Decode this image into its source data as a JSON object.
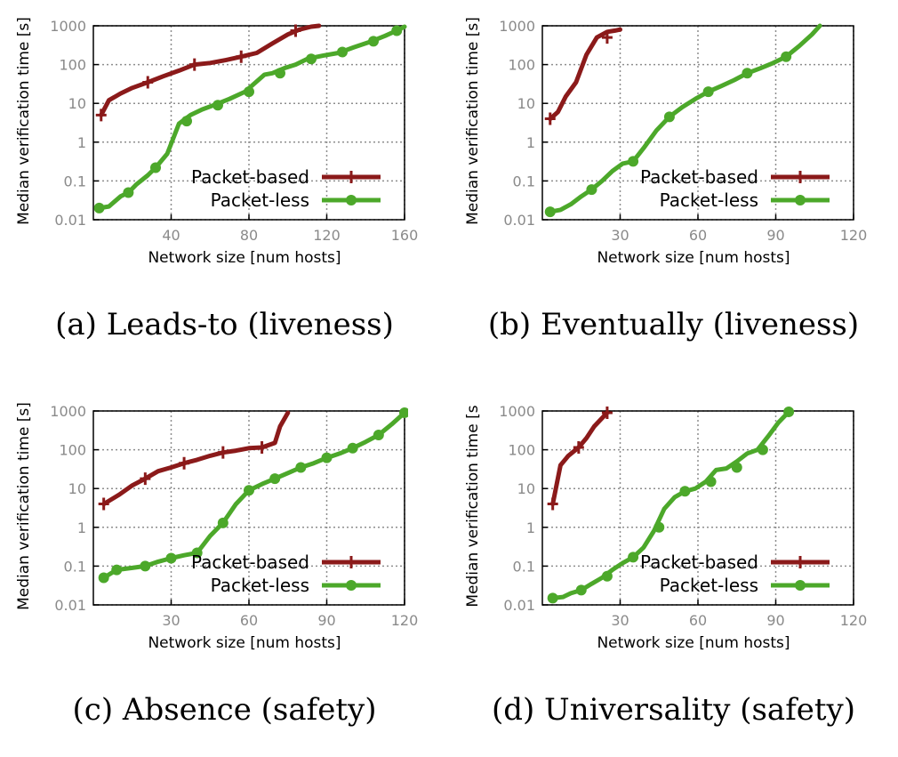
{
  "chart_data": [
    {
      "type": "line",
      "caption": "(a) Leads-to (liveness)",
      "xlabel": "Network size [num hosts]",
      "ylabel": "Median verification time [s]",
      "xlim": [
        0,
        160
      ],
      "xticks": [
        40,
        80,
        120,
        160
      ],
      "ylim": [
        0.01,
        1000
      ],
      "yscale": "log",
      "yticks": [
        0.01,
        0.1,
        1,
        10,
        100,
        1000
      ],
      "ytick_labels": [
        "0.01",
        "0.1",
        "1",
        "10",
        "100",
        "1000"
      ],
      "grid": true,
      "legend_position": "right",
      "series": [
        {
          "name": "Packet-based",
          "color": "#8b1a1a",
          "marker": "plus",
          "x": [
            4,
            8,
            14,
            20,
            28,
            36,
            44,
            52,
            60,
            68,
            76,
            84,
            92,
            100,
            106,
            112,
            116
          ],
          "y": [
            5,
            12,
            18,
            25,
            35,
            50,
            70,
            100,
            110,
            130,
            160,
            200,
            350,
            600,
            800,
            950,
            1000
          ],
          "marker_x": [
            4,
            28,
            52,
            76,
            104
          ],
          "marker_y": [
            5,
            35,
            100,
            160,
            750
          ]
        },
        {
          "name": "Packet-less",
          "color": "#4ca82a",
          "marker": "circle",
          "x": [
            3,
            8,
            14,
            18,
            22,
            28,
            32,
            38,
            44,
            50,
            56,
            62,
            70,
            78,
            82,
            88,
            92,
            98,
            104,
            110,
            118,
            126,
            134,
            142,
            150,
            156,
            160
          ],
          "y": [
            0.02,
            0.022,
            0.04,
            0.05,
            0.08,
            0.14,
            0.22,
            0.5,
            3,
            5,
            7,
            9,
            13,
            20,
            30,
            55,
            60,
            80,
            100,
            140,
            170,
            200,
            280,
            380,
            550,
            750,
            950
          ],
          "marker_x": [
            3,
            18,
            32,
            48,
            64,
            80,
            96,
            112,
            128,
            144,
            156
          ],
          "marker_y": [
            0.02,
            0.05,
            0.22,
            3.5,
            9,
            20,
            60,
            140,
            210,
            400,
            750
          ]
        }
      ]
    },
    {
      "type": "line",
      "caption": "(b) Eventually (liveness)",
      "xlabel": "Network size [num hosts]",
      "ylabel": "Median verification time [s]",
      "xlim": [
        0,
        120
      ],
      "xticks": [
        30,
        60,
        90,
        120
      ],
      "ylim": [
        0.01,
        1000
      ],
      "yscale": "log",
      "yticks": [
        0.01,
        0.1,
        1,
        10,
        100,
        1000
      ],
      "ytick_labels": [
        "0.01",
        "0.1",
        "1",
        "10",
        "100",
        "1000"
      ],
      "grid": true,
      "legend_position": "right",
      "series": [
        {
          "name": "Packet-based",
          "color": "#8b1a1a",
          "marker": "plus",
          "x": [
            3,
            6,
            9,
            13,
            17,
            21,
            25,
            28,
            30
          ],
          "y": [
            4,
            6,
            15,
            35,
            180,
            500,
            700,
            750,
            800
          ],
          "marker_x": [
            3,
            25
          ],
          "marker_y": [
            4,
            500
          ]
        },
        {
          "name": "Packet-less",
          "color": "#4ca82a",
          "marker": "circle",
          "x": [
            3,
            7,
            11,
            15,
            19,
            23,
            27,
            31,
            35,
            39,
            44,
            49,
            54,
            59,
            64,
            69,
            74,
            79,
            84,
            89,
            94,
            99,
            104,
            107
          ],
          "y": [
            0.016,
            0.018,
            0.025,
            0.04,
            0.06,
            0.1,
            0.18,
            0.28,
            0.32,
            0.7,
            2,
            4.5,
            8,
            13,
            20,
            28,
            40,
            60,
            80,
            110,
            160,
            300,
            600,
            1000
          ],
          "marker_x": [
            3,
            19,
            35,
            49,
            64,
            79,
            94
          ],
          "marker_y": [
            0.016,
            0.06,
            0.32,
            4.5,
            20,
            60,
            160
          ]
        }
      ]
    },
    {
      "type": "line",
      "caption": "(c) Absence (safety)",
      "xlabel": "Network size [num hosts]",
      "ylabel": "Median verification time [s]",
      "xlim": [
        0,
        120
      ],
      "xticks": [
        30,
        60,
        90,
        120
      ],
      "ylim": [
        0.01,
        1000
      ],
      "yscale": "log",
      "yticks": [
        0.01,
        0.1,
        1,
        10,
        100,
        1000
      ],
      "ytick_labels": [
        "0.01",
        "0.1",
        "1",
        "10",
        "100",
        "1000"
      ],
      "grid": true,
      "legend_position": "right",
      "series": [
        {
          "name": "Packet-based",
          "color": "#8b1a1a",
          "marker": "plus",
          "x": [
            4,
            10,
            15,
            20,
            25,
            30,
            35,
            40,
            45,
            50,
            55,
            60,
            65,
            70,
            72,
            75
          ],
          "y": [
            4,
            7,
            12,
            18,
            28,
            35,
            45,
            55,
            70,
            85,
            95,
            110,
            115,
            150,
            400,
            900
          ],
          "marker_x": [
            4,
            20,
            35,
            50,
            65
          ],
          "marker_y": [
            4,
            18,
            45,
            85,
            115
          ]
        },
        {
          "name": "Packet-less",
          "color": "#4ca82a",
          "marker": "circle",
          "x": [
            4,
            9,
            15,
            20,
            25,
            30,
            35,
            40,
            45,
            50,
            55,
            60,
            65,
            70,
            75,
            80,
            85,
            90,
            95,
            100,
            105,
            110,
            115,
            120
          ],
          "y": [
            0.05,
            0.08,
            0.09,
            0.1,
            0.13,
            0.16,
            0.19,
            0.22,
            0.6,
            1.3,
            4,
            9,
            13,
            18,
            25,
            35,
            45,
            62,
            80,
            110,
            160,
            240,
            450,
            900
          ],
          "marker_x": [
            4,
            9,
            20,
            30,
            40,
            50,
            60,
            70,
            80,
            90,
            100,
            110,
            120
          ],
          "marker_y": [
            0.05,
            0.08,
            0.1,
            0.16,
            0.22,
            1.3,
            9,
            18,
            35,
            62,
            110,
            240,
            900
          ]
        }
      ]
    },
    {
      "type": "line",
      "caption": "(d) Universality (safety)",
      "xlabel": "Network size [num hosts]",
      "ylabel": "Median verification time [s",
      "xlim": [
        0,
        120
      ],
      "xticks": [
        30,
        60,
        90,
        120
      ],
      "ylim": [
        0.01,
        1000
      ],
      "yscale": "log",
      "yticks": [
        0.01,
        0.1,
        1,
        10,
        100,
        1000
      ],
      "ytick_labels": [
        "0.01",
        "0.1",
        "1",
        "10",
        "100",
        "1000"
      ],
      "grid": true,
      "legend_position": "right",
      "series": [
        {
          "name": "Packet-based",
          "color": "#8b1a1a",
          "marker": "plus",
          "x": [
            4,
            7,
            10,
            14,
            17,
            20,
            25
          ],
          "y": [
            4,
            40,
            70,
            115,
            200,
            400,
            900
          ],
          "marker_x": [
            4,
            14,
            25
          ],
          "marker_y": [
            4,
            115,
            900
          ]
        },
        {
          "name": "Packet-less",
          "color": "#4ca82a",
          "marker": "circle",
          "x": [
            4,
            8,
            11,
            15,
            19,
            23,
            27,
            31,
            35,
            39,
            43,
            47,
            51,
            55,
            59,
            63,
            67,
            71,
            75,
            79,
            83,
            87,
            91,
            95
          ],
          "y": [
            0.015,
            0.016,
            0.02,
            0.024,
            0.035,
            0.05,
            0.08,
            0.12,
            0.17,
            0.3,
            0.8,
            3,
            6,
            8.5,
            10,
            15,
            30,
            33,
            50,
            80,
            100,
            220,
            500,
            950
          ],
          "marker_x": [
            4,
            15,
            25,
            35,
            45,
            55,
            65,
            75,
            85,
            95
          ],
          "marker_y": [
            0.015,
            0.024,
            0.055,
            0.17,
            1,
            8.5,
            15,
            35,
            100,
            950
          ]
        }
      ]
    }
  ]
}
